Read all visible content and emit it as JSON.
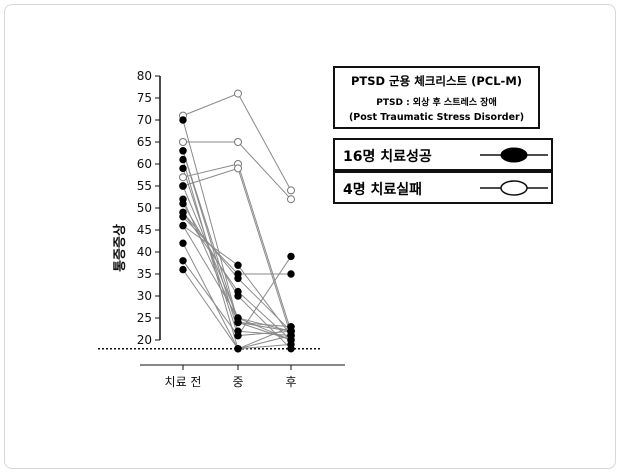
{
  "chart_data": {
    "type": "line",
    "categories": [
      "치료 전",
      "중",
      "후"
    ],
    "ylabel": "통증증상",
    "yticks": [
      20,
      25,
      30,
      35,
      40,
      45,
      50,
      55,
      60,
      65,
      70,
      75,
      80
    ],
    "ylim": [
      18,
      80
    ],
    "threshold_line": 18,
    "legend_box": {
      "title": "PTSD 군용 체크리스트 (PCL-M)",
      "subtitle": "PTSD : 외상 후 스트레스 장애",
      "subtitle2": "(Post Traumatic Stress Disorder)"
    },
    "legend": [
      {
        "label": "16명  치료성공",
        "marker": "filled"
      },
      {
        "label": "4명  치료실패",
        "marker": "open"
      }
    ],
    "series_success": [
      [
        70,
        24,
        20
      ],
      [
        63,
        22,
        21
      ],
      [
        63,
        24,
        22
      ],
      [
        61,
        18,
        19
      ],
      [
        59,
        21,
        22
      ],
      [
        55,
        25,
        20
      ],
      [
        52,
        24,
        23
      ],
      [
        51,
        30,
        18
      ],
      [
        49,
        31,
        20
      ],
      [
        49,
        34,
        22
      ],
      [
        48,
        35,
        35
      ],
      [
        46,
        37,
        21
      ],
      [
        46,
        25,
        22
      ],
      [
        42,
        18,
        23
      ],
      [
        38,
        21,
        39
      ],
      [
        36,
        18,
        21
      ]
    ],
    "series_fail": [
      [
        71,
        76,
        54
      ],
      [
        65,
        65,
        52
      ],
      [
        57,
        60,
        22
      ],
      [
        55,
        59,
        21
      ]
    ],
    "colors": {
      "success": "#000000",
      "fail": "#ffffff",
      "line": "#8a8a8a"
    }
  }
}
